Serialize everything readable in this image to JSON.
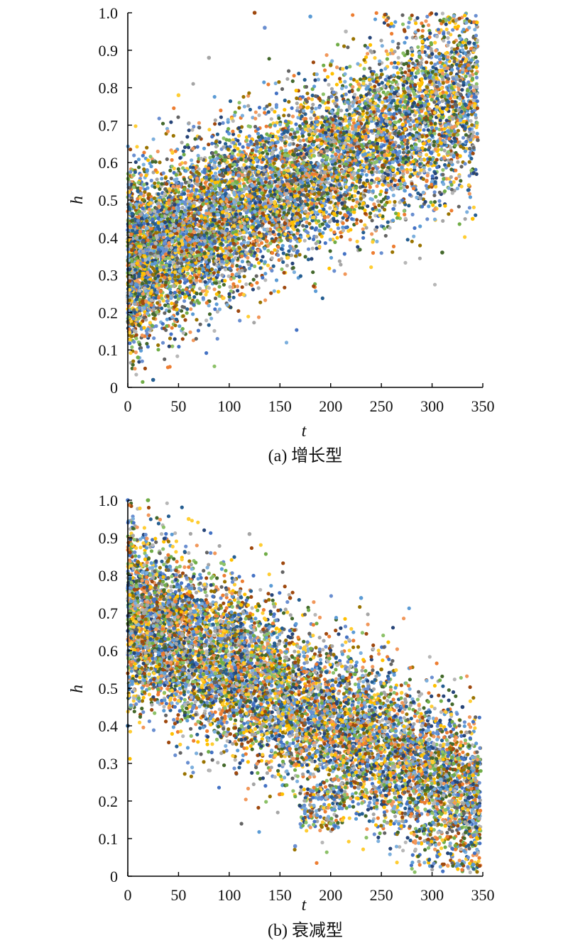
{
  "palette": [
    "#4472c4",
    "#ed7d31",
    "#a5a5a5",
    "#ffc000",
    "#5b9bd5",
    "#70ad47",
    "#264478",
    "#9e480e",
    "#636363",
    "#997300",
    "#255e91",
    "#43682b",
    "#698ed0",
    "#f1975a",
    "#b7b7b7",
    "#ffcd33",
    "#7cafdd",
    "#8cc168"
  ],
  "chart_data": [
    {
      "type": "scatter",
      "caption": "(a) 增长型",
      "xlabel": "t",
      "ylabel": "h",
      "xlim": [
        0,
        350
      ],
      "ylim": [
        0,
        1.0
      ],
      "xticks": [
        "0",
        "50",
        "100",
        "150",
        "200",
        "250",
        "300",
        "350"
      ],
      "yticks": [
        "0",
        "0.1",
        "0.2",
        "0.3",
        "0.4",
        "0.5",
        "0.6",
        "0.7",
        "0.8",
        "0.9",
        "1.0"
      ],
      "grid": false,
      "trend": "increasing",
      "point_count": 9000,
      "series_count": 18,
      "points_sample": [
        [
          0,
          0.42
        ],
        [
          10,
          0.08
        ],
        [
          25,
          0.02
        ],
        [
          50,
          0.78
        ],
        [
          80,
          0.88
        ],
        [
          125,
          1.0
        ],
        [
          135,
          0.96
        ],
        [
          155,
          0.62
        ],
        [
          180,
          0.99
        ],
        [
          200,
          0.86
        ],
        [
          215,
          0.95
        ],
        [
          255,
          0.98
        ],
        [
          300,
          0.89
        ],
        [
          310,
          0.36
        ],
        [
          330,
          0.9
        ],
        [
          340,
          0.45
        ],
        [
          345,
          0.66
        ]
      ]
    },
    {
      "type": "scatter",
      "caption": "(b) 衰减型",
      "xlabel": "t",
      "ylabel": "h",
      "xlim": [
        0,
        350
      ],
      "ylim": [
        0,
        1.0
      ],
      "xticks": [
        "0",
        "50",
        "100",
        "150",
        "200",
        "250",
        "300",
        "350"
      ],
      "yticks": [
        "0",
        "0.1",
        "0.2",
        "0.3",
        "0.4",
        "0.5",
        "0.6",
        "0.7",
        "0.8",
        "0.9",
        "1.0"
      ],
      "grid": false,
      "trend": "decreasing",
      "point_count": 9000,
      "series_count": 18,
      "points_sample": [
        [
          0,
          1.0
        ],
        [
          20,
          1.0
        ],
        [
          0,
          0.4
        ],
        [
          60,
          0.95
        ],
        [
          120,
          0.91
        ],
        [
          160,
          0.74
        ],
        [
          165,
          0.08
        ],
        [
          200,
          0.14
        ],
        [
          230,
          0.74
        ],
        [
          250,
          0.55
        ],
        [
          290,
          0.4
        ],
        [
          305,
          0.1
        ],
        [
          330,
          0.45
        ],
        [
          345,
          0.3
        ]
      ]
    }
  ]
}
